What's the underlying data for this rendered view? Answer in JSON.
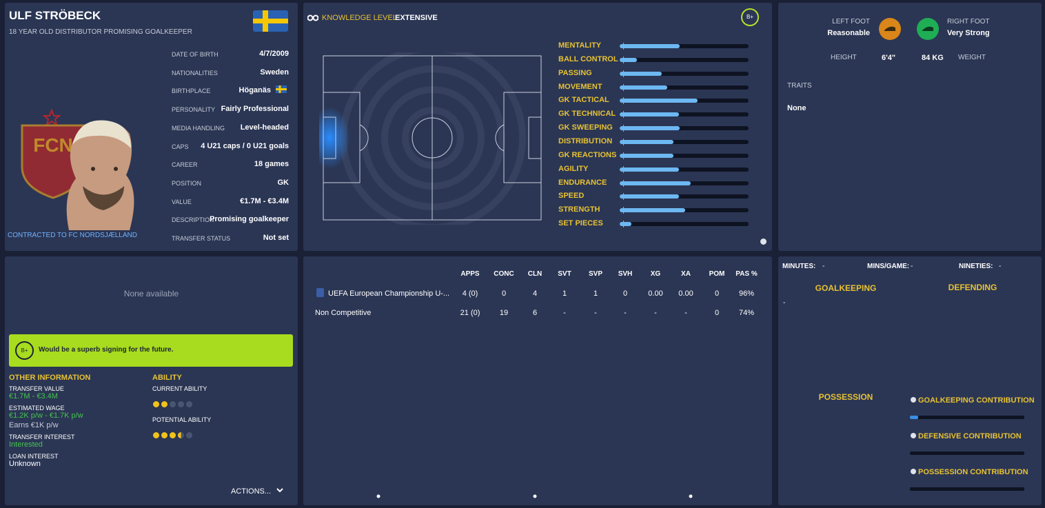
{
  "profile": {
    "name": "ULF STRÖBECK",
    "subtitle": "18 YEAR OLD DISTRIBUTOR PROMISING GOALKEEPER",
    "contract": "CONTRACTED TO FC NORDSJÆLLAND",
    "details": [
      {
        "label": "DATE OF BIRTH",
        "value": "4/7/2009"
      },
      {
        "label": "NATIONALITIES",
        "value": "Sweden"
      },
      {
        "label": "BIRTHPLACE",
        "value": "Höganäs"
      },
      {
        "label": "PERSONALITY",
        "value": "Fairly Professional"
      },
      {
        "label": "MEDIA HANDLING",
        "value": "Level-headed"
      },
      {
        "label": "CAPS",
        "value": "4 U21 caps / 0 U21 goals"
      },
      {
        "label": "CAREER",
        "value": "18  games"
      },
      {
        "label": "POSITION",
        "value": "GK"
      },
      {
        "label": "VALUE",
        "value": "€1.7M - €3.4M"
      },
      {
        "label": "DESCRIPTION",
        "value": "Promising goalkeeper"
      },
      {
        "label": "TRANSFER STATUS",
        "value": "Not set"
      }
    ]
  },
  "knowledge": {
    "label": "KNOWLEDGE LEVEL",
    "value": "EXTENSIVE",
    "grade": "B+"
  },
  "attributes": {
    "max": 20,
    "items": [
      {
        "name": "MENTALITY",
        "value": 9.3
      },
      {
        "name": "BALL CONTROL",
        "value": 2.7
      },
      {
        "name": "PASSING",
        "value": 6.5
      },
      {
        "name": "MOVEMENT",
        "value": 7.4
      },
      {
        "name": "GK TACTICAL",
        "value": 12.1
      },
      {
        "name": "GK TECHNICAL",
        "value": 9.2
      },
      {
        "name": "GK SWEEPING",
        "value": 9.3
      },
      {
        "name": "DISTRIBUTION",
        "value": 8.3
      },
      {
        "name": "GK REACTIONS",
        "value": 8.3
      },
      {
        "name": "AGILITY",
        "value": 9.2
      },
      {
        "name": "ENDURANCE",
        "value": 11
      },
      {
        "name": "SPEED",
        "value": 9.2
      },
      {
        "name": "STRENGTH",
        "value": 10.2
      },
      {
        "name": "SET PIECES",
        "value": 1.8
      }
    ]
  },
  "physical": {
    "left_foot": {
      "label": "LEFT FOOT",
      "value": "Reasonable"
    },
    "right_foot": {
      "label": "RIGHT FOOT",
      "value": "Very Strong"
    },
    "height": {
      "label": "HEIGHT",
      "value": "6'4\""
    },
    "weight": {
      "label": "WEIGHT",
      "value": "84 KG"
    },
    "traits_label": "TRAITS",
    "traits": "None"
  },
  "scout": {
    "none": "None available",
    "grade": "B+",
    "verdict": "Would be a superb signing for the future.",
    "other_title": "OTHER INFORMATION",
    "other": [
      {
        "label": "TRANSFER VALUE",
        "value": "€1.7M - €3.4M"
      },
      {
        "label": "ESTIMATED WAGE",
        "value": "€1.2K p/w - €1.7K p/w",
        "note": "Earns €1K p/w"
      },
      {
        "label": "TRANSFER INTEREST",
        "value": "Interested"
      },
      {
        "label": "LOAN INTEREST",
        "value": "Unknown"
      }
    ],
    "ability_title": "ABILITY",
    "stars_max": 5,
    "ability": [
      {
        "label": "CURRENT ABILITY",
        "stars": 2
      },
      {
        "label": "POTENTIAL ABILITY",
        "stars": 3.5
      }
    ],
    "actions": "ACTIONS..."
  },
  "stats": {
    "columns": [
      "APPS",
      "CONC",
      "CLN",
      "SVT",
      "SVP",
      "SVH",
      "XG",
      "XA",
      "POM",
      "PAS %"
    ],
    "rows": [
      {
        "competition": "UEFA European Championship U-...",
        "cells": [
          "4 (0)",
          "0",
          "4",
          "1",
          "1",
          "0",
          "0.00",
          "0.00",
          "0",
          "96%"
        ]
      },
      {
        "competition": "Non Competitive",
        "cells": [
          "21 (0)",
          "19",
          "6",
          "-",
          "-",
          "-",
          "-",
          "-",
          "0",
          "74%"
        ]
      }
    ]
  },
  "analytics": {
    "summary": [
      {
        "label": "MINUTES:",
        "value": "-"
      },
      {
        "label": "MINS/GAME:",
        "value": "-"
      },
      {
        "label": "NINETIES:",
        "value": "-"
      }
    ],
    "goalkeeping": "GOALKEEPING",
    "goalkeeping_value": "-",
    "defending": "DEFENDING",
    "possession": "POSSESSION",
    "contribution_max": 100,
    "contributions": [
      {
        "label": "GOALKEEPING CONTRIBUTION",
        "value": 7
      },
      {
        "label": "DEFENSIVE CONTRIBUTION",
        "value": 0
      },
      {
        "label": "POSSESSION CONTRIBUTION",
        "value": 0
      }
    ]
  }
}
